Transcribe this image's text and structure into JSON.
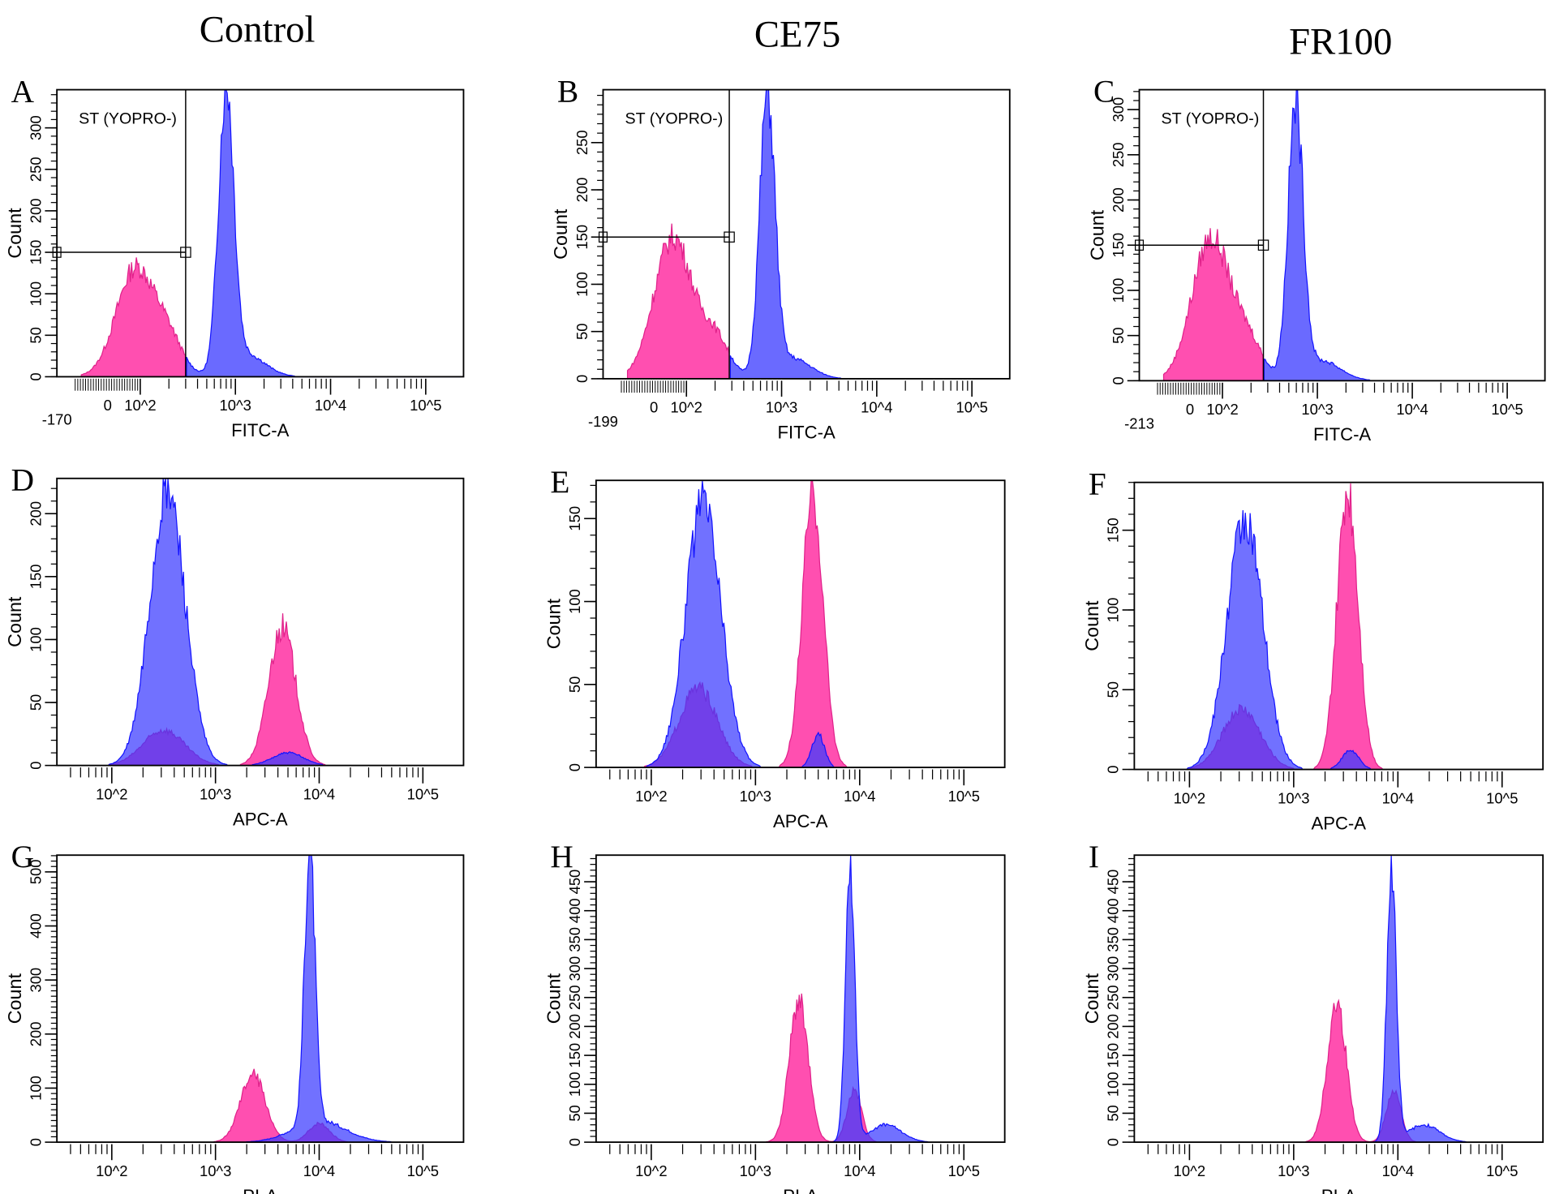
{
  "columns": [
    "Control",
    "CE75",
    "FR100"
  ],
  "colors": {
    "gated_negative_or_stained": "#ff4fb0",
    "stroke_pink": "#e0218a",
    "fill_blue": "#3a3aff",
    "stroke_blue": "#1414ff",
    "axis": "#000000"
  },
  "chart_data": [
    {
      "panel": "A",
      "type": "area",
      "column": "Control",
      "xlabel": "FITC-A",
      "ylabel": "Count",
      "xscale": "biexponential",
      "y_ticks": [
        "0",
        "50",
        "100",
        "150",
        "200",
        "250",
        "300"
      ],
      "ylim": [
        0,
        346
      ],
      "x_ticks": [
        "-170",
        "0",
        "10^2",
        "10^3",
        "10^4",
        "10^5"
      ],
      "gate": {
        "label": "ST (YOPRO-)",
        "boundary": 300,
        "marker_count": 150
      },
      "series": [
        {
          "color": "pink",
          "side": "below-gate",
          "peaks": [
            {
              "center": 85,
              "count": 130,
              "sd_decades": 0.2
            },
            {
              "center": 200,
              "count": 40,
              "sd_decades": 0.15
            }
          ]
        },
        {
          "color": "blue",
          "side": "above-gate",
          "peaks": [
            {
              "center": 800,
              "count": 340,
              "sd_decades": 0.08
            },
            {
              "center": 1260,
              "count": 28,
              "sd_decades": 0.2
            }
          ]
        }
      ]
    },
    {
      "panel": "B",
      "type": "area",
      "column": "CE75",
      "xlabel": "FITC-A",
      "ylabel": "Count",
      "xscale": "biexponential",
      "y_ticks": [
        "0",
        "50",
        "100",
        "150",
        "200",
        "250"
      ],
      "ylim": [
        0,
        306
      ],
      "x_ticks": [
        "-199",
        "0",
        "10^2",
        "10^3",
        "10^4",
        "10^5"
      ],
      "gate": {
        "label": "ST (YOPRO-)",
        "boundary": 282,
        "marker_count": 150
      },
      "series": [
        {
          "color": "pink",
          "side": "below-gate",
          "peaks": [
            {
              "center": 59,
              "count": 150,
              "sd_decades": 0.2
            },
            {
              "center": 200,
              "count": 42,
              "sd_decades": 0.15
            }
          ]
        },
        {
          "color": "blue",
          "side": "above-gate",
          "peaks": [
            {
              "center": 708,
              "count": 295,
              "sd_decades": 0.08
            },
            {
              "center": 1260,
              "count": 22,
              "sd_decades": 0.2
            }
          ]
        }
      ]
    },
    {
      "panel": "C",
      "type": "area",
      "column": "FR100",
      "xlabel": "FITC-A",
      "ylabel": "Count",
      "xscale": "biexponential",
      "y_ticks": [
        "0",
        "50",
        "100",
        "150",
        "200",
        "250",
        "300"
      ],
      "ylim": [
        0,
        322
      ],
      "x_ticks": [
        "-213",
        "0",
        "10^2",
        "10^3",
        "10^4",
        "10^5"
      ],
      "gate": {
        "label": "ST (YOPRO-)",
        "boundary": 270,
        "marker_count": 150
      },
      "series": [
        {
          "color": "pink",
          "side": "below-gate",
          "peaks": [
            {
              "center": 65,
              "count": 158,
              "sd_decades": 0.2
            },
            {
              "center": 190,
              "count": 40,
              "sd_decades": 0.15
            }
          ]
        },
        {
          "color": "blue",
          "side": "above-gate",
          "peaks": [
            {
              "center": 590,
              "count": 300,
              "sd_decades": 0.08
            },
            {
              "center": 1100,
              "count": 22,
              "sd_decades": 0.2
            }
          ]
        }
      ]
    },
    {
      "panel": "D",
      "type": "area",
      "column": "Control",
      "xlabel": "APC-A",
      "ylabel": "Count",
      "xscale": "log",
      "y_ticks": [
        "0",
        "50",
        "100",
        "150",
        "200"
      ],
      "ylim": [
        0,
        228
      ],
      "x_ticks": [
        "10^2",
        "10^3",
        "10^4",
        "10^5"
      ],
      "series": [
        {
          "color": "blue",
          "peaks": [
            {
              "center": 345,
              "count": 218,
              "sd_decades": 0.17
            },
            {
              "center": 5000,
              "count": 10,
              "sd_decades": 0.15
            }
          ]
        },
        {
          "color": "pink",
          "peaks": [
            {
              "center": 4400,
              "count": 110,
              "sd_decades": 0.13
            },
            {
              "center": 316,
              "count": 28,
              "sd_decades": 0.2
            }
          ]
        }
      ]
    },
    {
      "panel": "E",
      "type": "area",
      "column": "CE75",
      "xlabel": "APC-A",
      "ylabel": "Count",
      "xscale": "log",
      "y_ticks": [
        "0",
        "50",
        "100",
        "150"
      ],
      "ylim": [
        0,
        173
      ],
      "x_ticks": [
        "10^2",
        "10^3",
        "10^4",
        "10^5"
      ],
      "series": [
        {
          "color": "blue",
          "peaks": [
            {
              "center": 316,
              "count": 158,
              "sd_decades": 0.17
            },
            {
              "center": 4000,
              "count": 20,
              "sd_decades": 0.06
            }
          ]
        },
        {
          "color": "pink",
          "peaks": [
            {
              "center": 3550,
              "count": 165,
              "sd_decades": 0.1
            },
            {
              "center": 282,
              "count": 48,
              "sd_decades": 0.18
            }
          ]
        }
      ]
    },
    {
      "panel": "F",
      "type": "area",
      "column": "FR100",
      "xlabel": "APC-A",
      "ylabel": "Count",
      "xscale": "log",
      "y_ticks": [
        "0",
        "50",
        "100",
        "150"
      ],
      "ylim": [
        0,
        180
      ],
      "x_ticks": [
        "10^2",
        "10^3",
        "10^4",
        "10^5"
      ],
      "series": [
        {
          "color": "blue",
          "peaks": [
            {
              "center": 340,
              "count": 158,
              "sd_decades": 0.17
            },
            {
              "center": 3500,
              "count": 12,
              "sd_decades": 0.08
            }
          ]
        },
        {
          "color": "pink",
          "peaks": [
            {
              "center": 3300,
              "count": 175,
              "sd_decades": 0.1
            },
            {
              "center": 316,
              "count": 38,
              "sd_decades": 0.18
            }
          ]
        }
      ]
    },
    {
      "panel": "G",
      "type": "area",
      "column": "Control",
      "xlabel": "PI-A",
      "ylabel": "Count",
      "xscale": "log",
      "y_ticks": [
        "0",
        "100",
        "200",
        "300",
        "400",
        "500"
      ],
      "ylim": [
        0,
        531
      ],
      "x_ticks": [
        "10^2",
        "10^3",
        "10^4",
        "10^5"
      ],
      "series": [
        {
          "color": "blue",
          "peaks": [
            {
              "center": 8100,
              "count": 515,
              "sd_decades": 0.05
            },
            {
              "center": 10000,
              "count": 40,
              "sd_decades": 0.25
            }
          ]
        },
        {
          "color": "pink",
          "peaks": [
            {
              "center": 2300,
              "count": 125,
              "sd_decades": 0.12
            },
            {
              "center": 10000,
              "count": 35,
              "sd_decades": 0.1
            }
          ]
        }
      ]
    },
    {
      "panel": "H",
      "type": "area",
      "column": "CE75",
      "xlabel": "PI-A",
      "ylabel": "Count",
      "xscale": "log",
      "y_ticks": [
        "0",
        "50",
        "100",
        "150",
        "200",
        "250",
        "300",
        "350",
        "400",
        "450"
      ],
      "ylim": [
        0,
        496
      ],
      "x_ticks": [
        "10^2",
        "10^3",
        "10^4",
        "10^5"
      ],
      "series": [
        {
          "color": "blue",
          "peaks": [
            {
              "center": 8100,
              "count": 480,
              "sd_decades": 0.045
            },
            {
              "center": 17800,
              "count": 30,
              "sd_decades": 0.15
            }
          ]
        },
        {
          "color": "pink",
          "peaks": [
            {
              "center": 2600,
              "count": 245,
              "sd_decades": 0.09
            },
            {
              "center": 8900,
              "count": 90,
              "sd_decades": 0.07
            }
          ]
        }
      ]
    },
    {
      "panel": "I",
      "type": "area",
      "column": "FR100",
      "xlabel": "PI-A",
      "ylabel": "Count",
      "xscale": "log",
      "y_ticks": [
        "0",
        "50",
        "100",
        "150",
        "200",
        "250",
        "300",
        "350",
        "400",
        "450"
      ],
      "ylim": [
        0,
        496
      ],
      "x_ticks": [
        "10^2",
        "10^3",
        "10^4",
        "10^5"
      ],
      "series": [
        {
          "color": "blue",
          "peaks": [
            {
              "center": 8700,
              "count": 480,
              "sd_decades": 0.045
            },
            {
              "center": 17800,
              "count": 30,
              "sd_decades": 0.15
            }
          ]
        },
        {
          "color": "pink",
          "peaks": [
            {
              "center": 2600,
              "count": 240,
              "sd_decades": 0.09
            },
            {
              "center": 9100,
              "count": 90,
              "sd_decades": 0.07
            }
          ]
        }
      ]
    }
  ]
}
